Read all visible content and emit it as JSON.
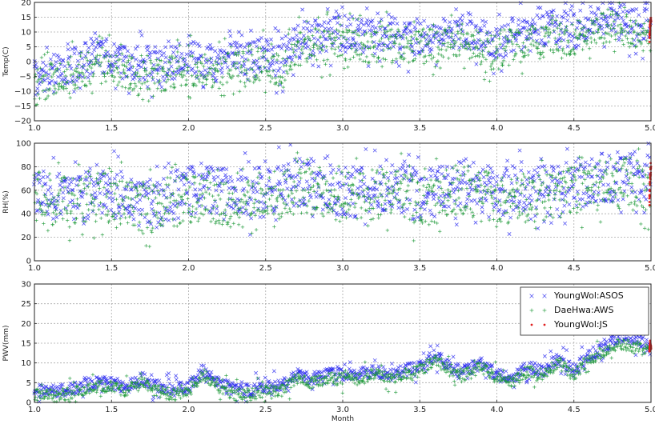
{
  "chart_data": [
    {
      "type": "scatter",
      "id": "temp",
      "title": "",
      "xlabel": "",
      "ylabel": "Temp(C)",
      "xlim": [
        1.0,
        5.0
      ],
      "ylim": [
        -20,
        20
      ],
      "xticks": [
        "1.0",
        "1.5",
        "2.0",
        "2.5",
        "3.0",
        "3.5",
        "4.0",
        "4.5",
        "5.0"
      ],
      "yticks": [
        "−20",
        "−15",
        "−10",
        "−5",
        "0",
        "5",
        "10",
        "15",
        "20"
      ],
      "grid": true,
      "series": [
        {
          "name": "YoungWol:ASOS",
          "color": "#2a2af0",
          "marker": "x",
          "x": [
            1.0,
            1.1,
            1.2,
            1.3,
            1.4,
            1.5,
            1.6,
            1.7,
            1.8,
            1.9,
            2.0,
            2.1,
            2.2,
            2.3,
            2.4,
            2.5,
            2.6,
            2.7,
            2.8,
            2.9,
            3.0,
            3.1,
            3.2,
            3.3,
            3.4,
            3.5,
            3.6,
            3.7,
            3.8,
            3.9,
            4.0,
            4.1,
            4.2,
            4.3,
            4.4,
            4.5,
            4.6,
            4.7,
            4.8,
            4.9,
            5.0
          ],
          "values": [
            -6,
            -3,
            -2,
            0,
            1,
            2,
            -1,
            0,
            -2,
            0,
            1,
            0,
            -1,
            2,
            1,
            3,
            -1,
            7,
            8,
            9,
            10,
            9,
            8,
            10,
            7,
            9,
            8,
            9,
            10,
            8,
            6,
            9,
            10,
            11,
            12,
            10,
            14,
            15,
            14,
            12,
            12
          ]
        },
        {
          "name": "DaeHwa:AWS",
          "color": "#1f9a3a",
          "marker": "+",
          "x": [
            1.0,
            1.1,
            1.2,
            1.3,
            1.4,
            1.5,
            1.6,
            1.7,
            1.8,
            1.9,
            2.0,
            2.1,
            2.2,
            2.3,
            2.4,
            2.5,
            2.6,
            2.7,
            2.8,
            2.9,
            3.0,
            3.1,
            3.2,
            3.3,
            3.4,
            3.5,
            3.6,
            3.7,
            3.8,
            3.9,
            4.0,
            4.1,
            4.2,
            4.3,
            4.4,
            4.5,
            4.6,
            4.7,
            4.8,
            4.9,
            5.0
          ],
          "values": [
            -9,
            -6,
            -5,
            -3,
            -2,
            -1,
            -4,
            -3,
            -5,
            -3,
            -2,
            -3,
            -4,
            -1,
            -2,
            0,
            -4,
            4,
            5,
            6,
            7,
            6,
            5,
            7,
            4,
            6,
            5,
            6,
            7,
            5,
            3,
            6,
            7,
            8,
            9,
            7,
            11,
            12,
            11,
            9,
            9
          ]
        },
        {
          "name": "YoungWol:JS",
          "color": "#e02020",
          "marker": ".",
          "x": [
            4.99,
            4.995,
            5.0
          ],
          "values": [
            8,
            12,
            14
          ]
        }
      ]
    },
    {
      "type": "scatter",
      "id": "rh",
      "title": "",
      "xlabel": "",
      "ylabel": "RH(%)",
      "xlim": [
        1.0,
        5.0
      ],
      "ylim": [
        0,
        100
      ],
      "xticks": [
        "1.0",
        "1.5",
        "2.0",
        "2.5",
        "3.0",
        "3.5",
        "4.0",
        "4.5",
        "5.0"
      ],
      "yticks": [
        "0",
        "20",
        "40",
        "60",
        "80",
        "100"
      ],
      "grid": true,
      "series": [
        {
          "name": "YoungWol:ASOS",
          "color": "#2a2af0",
          "marker": "x",
          "x": [
            1.0,
            1.1,
            1.2,
            1.3,
            1.4,
            1.5,
            1.6,
            1.7,
            1.8,
            1.9,
            2.0,
            2.1,
            2.2,
            2.3,
            2.4,
            2.5,
            2.6,
            2.7,
            2.8,
            2.9,
            3.0,
            3.1,
            3.2,
            3.3,
            3.4,
            3.5,
            3.6,
            3.7,
            3.8,
            3.9,
            4.0,
            4.1,
            4.2,
            4.3,
            4.4,
            4.5,
            4.6,
            4.7,
            4.8,
            4.9,
            5.0
          ],
          "values": [
            60,
            58,
            55,
            52,
            60,
            58,
            55,
            50,
            48,
            55,
            60,
            62,
            58,
            55,
            56,
            60,
            62,
            68,
            65,
            62,
            60,
            58,
            62,
            65,
            60,
            55,
            58,
            62,
            65,
            62,
            55,
            58,
            60,
            58,
            62,
            65,
            68,
            70,
            72,
            70,
            68
          ]
        },
        {
          "name": "DaeHwa:AWS",
          "color": "#1f9a3a",
          "marker": "+",
          "x": [
            1.0,
            1.1,
            1.2,
            1.3,
            1.4,
            1.5,
            1.6,
            1.7,
            1.8,
            1.9,
            2.0,
            2.1,
            2.2,
            2.3,
            2.4,
            2.5,
            2.6,
            2.7,
            2.8,
            2.9,
            3.0,
            3.1,
            3.2,
            3.3,
            3.4,
            3.5,
            3.6,
            3.7,
            3.8,
            3.9,
            4.0,
            4.1,
            4.2,
            4.3,
            4.4,
            4.5,
            4.6,
            4.7,
            4.8,
            4.9,
            5.0
          ],
          "values": [
            55,
            52,
            50,
            48,
            54,
            52,
            50,
            45,
            44,
            50,
            54,
            56,
            52,
            50,
            51,
            55,
            57,
            62,
            60,
            57,
            55,
            53,
            57,
            60,
            55,
            50,
            53,
            57,
            60,
            57,
            50,
            53,
            55,
            53,
            57,
            60,
            62,
            64,
            66,
            64,
            62
          ]
        },
        {
          "name": "YoungWol:JS",
          "color": "#e02020",
          "marker": ".",
          "x": [
            4.99,
            4.995,
            5.0
          ],
          "values": [
            50,
            70,
            80
          ]
        }
      ]
    },
    {
      "type": "scatter",
      "id": "pwv",
      "title": "",
      "xlabel": "Month",
      "ylabel": "PWV(mm)",
      "xlim": [
        1.0,
        5.0
      ],
      "ylim": [
        0,
        30
      ],
      "xticks": [
        "1.0",
        "1.5",
        "2.0",
        "2.5",
        "3.0",
        "3.5",
        "4.0",
        "4.5",
        "5.0"
      ],
      "yticks": [
        "0",
        "5",
        "10",
        "15",
        "20",
        "25",
        "30"
      ],
      "grid": true,
      "legend": {
        "position": "top-right",
        "entries": [
          "YoungWol:ASOS",
          "DaeHwa:AWS",
          "YoungWol:JS"
        ]
      },
      "series": [
        {
          "name": "YoungWol:ASOS",
          "color": "#2a2af0",
          "marker": "x",
          "x": [
            1.0,
            1.1,
            1.2,
            1.3,
            1.4,
            1.5,
            1.6,
            1.7,
            1.8,
            1.9,
            2.0,
            2.1,
            2.2,
            2.3,
            2.4,
            2.5,
            2.6,
            2.7,
            2.8,
            2.9,
            3.0,
            3.1,
            3.2,
            3.3,
            3.4,
            3.5,
            3.6,
            3.7,
            3.8,
            3.9,
            4.0,
            4.1,
            4.2,
            4.3,
            4.4,
            4.5,
            4.6,
            4.7,
            4.8,
            4.9,
            5.0
          ],
          "values": [
            3,
            3,
            3,
            4,
            5,
            5,
            4,
            6,
            4,
            3,
            4,
            8,
            5,
            3,
            3,
            4,
            4,
            7,
            6,
            7,
            7,
            7,
            8,
            7,
            8,
            9,
            12,
            9,
            8,
            10,
            7,
            6,
            9,
            8,
            11,
            8,
            12,
            14,
            17,
            16,
            14
          ]
        },
        {
          "name": "DaeHwa:AWS",
          "color": "#1f9a3a",
          "marker": "+",
          "x": [
            1.0,
            1.1,
            1.2,
            1.3,
            1.4,
            1.5,
            1.6,
            1.7,
            1.8,
            1.9,
            2.0,
            2.1,
            2.2,
            2.3,
            2.4,
            2.5,
            2.6,
            2.7,
            2.8,
            2.9,
            3.0,
            3.1,
            3.2,
            3.3,
            3.4,
            3.5,
            3.6,
            3.7,
            3.8,
            3.9,
            4.0,
            4.1,
            4.2,
            4.3,
            4.4,
            4.5,
            4.6,
            4.7,
            4.8,
            4.9,
            5.0
          ],
          "values": [
            2,
            2,
            2,
            3,
            4,
            4,
            3,
            5,
            3,
            2,
            3,
            7,
            4,
            2,
            2,
            3,
            3,
            6,
            5,
            6,
            6,
            6,
            7,
            6,
            7,
            8,
            11,
            8,
            7,
            9,
            6,
            5,
            8,
            7,
            10,
            7,
            11,
            13,
            15,
            14,
            13
          ]
        },
        {
          "name": "YoungWol:JS",
          "color": "#e02020",
          "marker": ".",
          "x": [
            4.99,
            4.995,
            5.0
          ],
          "values": [
            13,
            15,
            14
          ]
        }
      ]
    }
  ]
}
